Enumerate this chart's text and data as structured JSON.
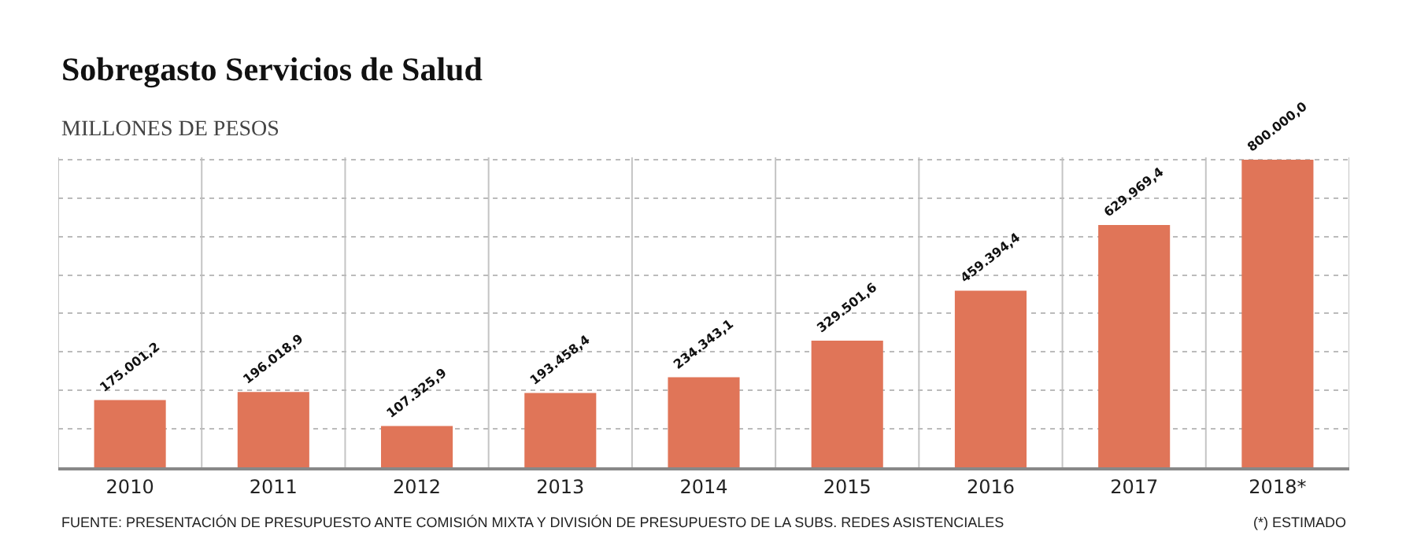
{
  "chart_data": {
    "type": "bar",
    "title": "Sobregasto Servicios de Salud",
    "subtitle": "MILLONES DE PESOS",
    "categories": [
      "2010",
      "2011",
      "2012",
      "2013",
      "2014",
      "2015",
      "2016",
      "2017",
      "2018*"
    ],
    "values": [
      175001.2,
      196018.9,
      107325.9,
      193458.4,
      234343.1,
      329501.6,
      459394.4,
      629969.4,
      800000.0
    ],
    "value_labels": [
      "175.001,2",
      "196.018,9",
      "107.325,9",
      "193.458,4",
      "234.343,1",
      "329.501,6",
      "459.394,4",
      "629.969,4",
      "800.000,0"
    ],
    "color": "#e07558",
    "ylim": [
      0,
      806000
    ],
    "yticks": [
      {
        "value": 0,
        "label": null
      },
      {
        "value": 100000,
        "label": null
      },
      {
        "value": 200000,
        "label": null
      },
      {
        "value": 300000,
        "label": null
      },
      {
        "value": 400000,
        "label": null
      },
      {
        "value": 500000,
        "label": null
      },
      {
        "value": 600000,
        "label": null
      },
      {
        "value": 700000,
        "label": null
      },
      {
        "value": 800000,
        "label": null
      }
    ],
    "tick_labels": "x",
    "grid": true,
    "legend": false,
    "annotations": [
      "FUENTE: PRESENTACIÓN DE PRESUPUESTO ANTE COMISIÓN MIXTA Y DIVISIÓN DE PRESUPUESTO DE LA SUBS. REDES ASISTENCIALES",
      "(*) ESTIMADO"
    ]
  }
}
